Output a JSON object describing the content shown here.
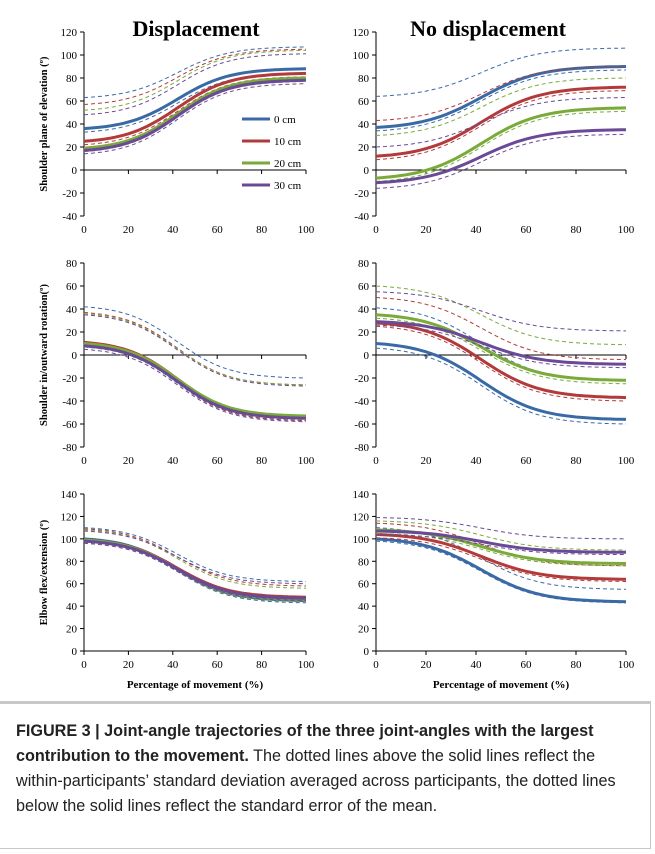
{
  "column_titles": [
    "Displacement",
    "No displacement"
  ],
  "figure_caption": {
    "label": "FIGURE 3 | Joint-angle trajectories of the three joint-angles with the largest contribution to the movement.",
    "text": " The dotted lines above the solid lines reflect the within-participants’ standard deviation averaged across participants, the dotted lines below the solid lines reflect the standard error of the mean."
  },
  "legend": {
    "placement": "upper-left panel, right",
    "entries": [
      {
        "label": "0 cm",
        "color": "#3a6aa6"
      },
      {
        "label": "10 cm",
        "color": "#b33a3a"
      },
      {
        "label": "20 cm",
        "color": "#7aaa3a"
      },
      {
        "label": "30 cm",
        "color": "#6a4a96"
      }
    ]
  },
  "colors": {
    "0 cm": "#3a6aa6",
    "10 cm": "#b33a3a",
    "20 cm": "#7aaa3a",
    "30 cm": "#6a4a96"
  },
  "chart_data": [
    {
      "type": "line",
      "row": 0,
      "col": 0,
      "title": "Displacement",
      "ylabel": "Shoulder plane of elevation (º)",
      "xlabel": "",
      "xlim": [
        0,
        100
      ],
      "ylim": [
        -40,
        120
      ],
      "yticks": [
        -40,
        -20,
        0,
        20,
        40,
        60,
        80,
        100,
        120
      ],
      "xticks": [
        0,
        20,
        40,
        60,
        80,
        100
      ],
      "series": [
        {
          "name": "0 cm",
          "start": 36,
          "end": 88,
          "sd_upper": [
            63,
            107
          ],
          "se_lower": [
            33,
            84
          ]
        },
        {
          "name": "10 cm",
          "start": 25,
          "end": 84,
          "sd_upper": [
            57,
            105
          ],
          "se_lower": [
            22,
            81
          ]
        },
        {
          "name": "20 cm",
          "start": 19,
          "end": 80,
          "sd_upper": [
            52,
            104
          ],
          "se_lower": [
            16,
            77
          ]
        },
        {
          "name": "30 cm",
          "start": 17,
          "end": 78,
          "sd_upper": [
            48,
            101
          ],
          "se_lower": [
            14,
            75
          ]
        }
      ]
    },
    {
      "type": "line",
      "row": 0,
      "col": 1,
      "title": "No displacement",
      "ylabel": "",
      "xlabel": "",
      "xlim": [
        0,
        100
      ],
      "ylim": [
        -40,
        120
      ],
      "yticks": [
        -40,
        -20,
        0,
        20,
        40,
        60,
        80,
        100,
        120
      ],
      "xticks": [
        0,
        20,
        40,
        60,
        80,
        100
      ],
      "series": [
        {
          "name": "0 cm",
          "start": 37,
          "end": 90,
          "sd_upper": [
            64,
            106
          ],
          "se_lower": [
            34,
            87
          ]
        },
        {
          "name": "10 cm",
          "start": 12,
          "end": 72,
          "sd_upper": [
            43,
            90
          ],
          "se_lower": [
            9,
            69
          ]
        },
        {
          "name": "20 cm",
          "start": -7,
          "end": 54,
          "sd_upper": [
            30,
            80
          ],
          "se_lower": [
            -10,
            51
          ]
        },
        {
          "name": "30 cm",
          "start": -11,
          "end": 35,
          "sd_upper": [
            20,
            63
          ],
          "se_lower": [
            -16,
            31
          ]
        }
      ]
    },
    {
      "type": "line",
      "row": 1,
      "col": 0,
      "title": "",
      "ylabel": "Shoulder in/outward rotation(º)",
      "xlabel": "",
      "xlim": [
        0,
        100
      ],
      "ylim": [
        -80,
        80
      ],
      "yticks": [
        -80,
        -60,
        -40,
        -20,
        0,
        20,
        40,
        60,
        80
      ],
      "xticks": [
        0,
        20,
        40,
        60,
        80,
        100
      ],
      "series": [
        {
          "name": "0 cm",
          "start": 10,
          "end": -54,
          "sd_upper": [
            42,
            -20
          ],
          "se_lower": [
            7,
            -57
          ]
        },
        {
          "name": "10 cm",
          "start": 11,
          "end": -54,
          "sd_upper": [
            37,
            -26
          ],
          "se_lower": [
            8,
            -57
          ]
        },
        {
          "name": "20 cm",
          "start": 10,
          "end": -53,
          "sd_upper": [
            36,
            -26
          ],
          "se_lower": [
            7,
            -56
          ]
        },
        {
          "name": "30 cm",
          "start": 8,
          "end": -55,
          "sd_upper": [
            35,
            -27
          ],
          "se_lower": [
            5,
            -58
          ]
        }
      ]
    },
    {
      "type": "line",
      "row": 1,
      "col": 1,
      "title": "",
      "ylabel": "",
      "xlabel": "",
      "xlim": [
        0,
        100
      ],
      "ylim": [
        -80,
        80
      ],
      "yticks": [
        -80,
        -60,
        -40,
        -20,
        0,
        20,
        40,
        60,
        80
      ],
      "xticks": [
        0,
        20,
        40,
        60,
        80,
        100
      ],
      "series": [
        {
          "name": "0 cm",
          "start": 10,
          "end": -56,
          "sd_upper": [
            41,
            -22
          ],
          "se_lower": [
            6,
            -60
          ]
        },
        {
          "name": "10 cm",
          "start": 28,
          "end": -37,
          "sd_upper": [
            50,
            -4
          ],
          "se_lower": [
            25,
            -40
          ]
        },
        {
          "name": "20 cm",
          "start": 35,
          "end": -22,
          "sd_upper": [
            60,
            9
          ],
          "se_lower": [
            32,
            -25
          ]
        },
        {
          "name": "30 cm",
          "start": 29,
          "end": -8,
          "sd_upper": [
            55,
            21
          ],
          "se_lower": [
            26,
            -11
          ]
        }
      ]
    },
    {
      "type": "line",
      "row": 2,
      "col": 0,
      "title": "",
      "ylabel": "Elbow flex/extension (º)",
      "xlabel": "Percentage of movement (%)",
      "xlim": [
        0,
        100
      ],
      "ylim": [
        0,
        140
      ],
      "yticks": [
        0,
        20,
        40,
        60,
        80,
        100,
        120,
        140
      ],
      "xticks": [
        0,
        20,
        40,
        60,
        80,
        100
      ],
      "series": [
        {
          "name": "0 cm",
          "start": 100,
          "end": 45,
          "sd_upper": [
            110,
            62
          ],
          "se_lower": [
            98,
            43
          ]
        },
        {
          "name": "10 cm",
          "start": 99,
          "end": 48,
          "sd_upper": [
            109,
            58
          ],
          "se_lower": [
            97,
            46
          ]
        },
        {
          "name": "20 cm",
          "start": 99,
          "end": 46,
          "sd_upper": [
            108,
            56
          ],
          "se_lower": [
            97,
            44
          ]
        },
        {
          "name": "30 cm",
          "start": 98,
          "end": 47,
          "sd_upper": [
            107,
            60
          ],
          "se_lower": [
            96,
            45
          ]
        }
      ]
    },
    {
      "type": "line",
      "row": 2,
      "col": 1,
      "title": "",
      "ylabel": "",
      "xlabel": "Percentage of movement (%)",
      "xlim": [
        0,
        100
      ],
      "ylim": [
        0,
        140
      ],
      "yticks": [
        0,
        20,
        40,
        60,
        80,
        100,
        120,
        140
      ],
      "xticks": [
        0,
        20,
        40,
        60,
        80,
        100
      ],
      "series": [
        {
          "name": "0 cm",
          "start": 100,
          "end": 44,
          "sd_upper": [
            110,
            55
          ],
          "se_lower": [
            98,
            43
          ]
        },
        {
          "name": "10 cm",
          "start": 104,
          "end": 64,
          "sd_upper": [
            114,
            76
          ],
          "se_lower": [
            101,
            62
          ]
        },
        {
          "name": "20 cm",
          "start": 108,
          "end": 78,
          "sd_upper": [
            116,
            90
          ],
          "se_lower": [
            105,
            76
          ]
        },
        {
          "name": "30 cm",
          "start": 107,
          "end": 88,
          "sd_upper": [
            119,
            100
          ],
          "se_lower": [
            104,
            86
          ]
        }
      ]
    }
  ]
}
